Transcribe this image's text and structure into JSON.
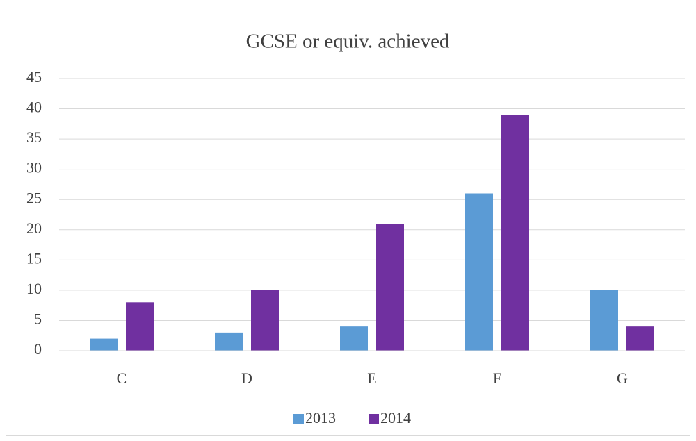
{
  "chart_data": {
    "type": "bar",
    "title": "GCSE or equiv. achieved",
    "categories": [
      "C",
      "D",
      "E",
      "F",
      "G"
    ],
    "series": [
      {
        "name": "2013",
        "color": "#5b9bd5",
        "values": [
          2,
          3,
          4,
          26,
          10
        ]
      },
      {
        "name": "2014",
        "color": "#7030a0",
        "values": [
          8,
          10,
          21,
          39,
          4
        ]
      }
    ],
    "ylim": [
      0,
      45
    ],
    "yticks": [
      0,
      5,
      10,
      15,
      20,
      25,
      30,
      35,
      40,
      45
    ],
    "grid": true,
    "legend": "bottom"
  }
}
